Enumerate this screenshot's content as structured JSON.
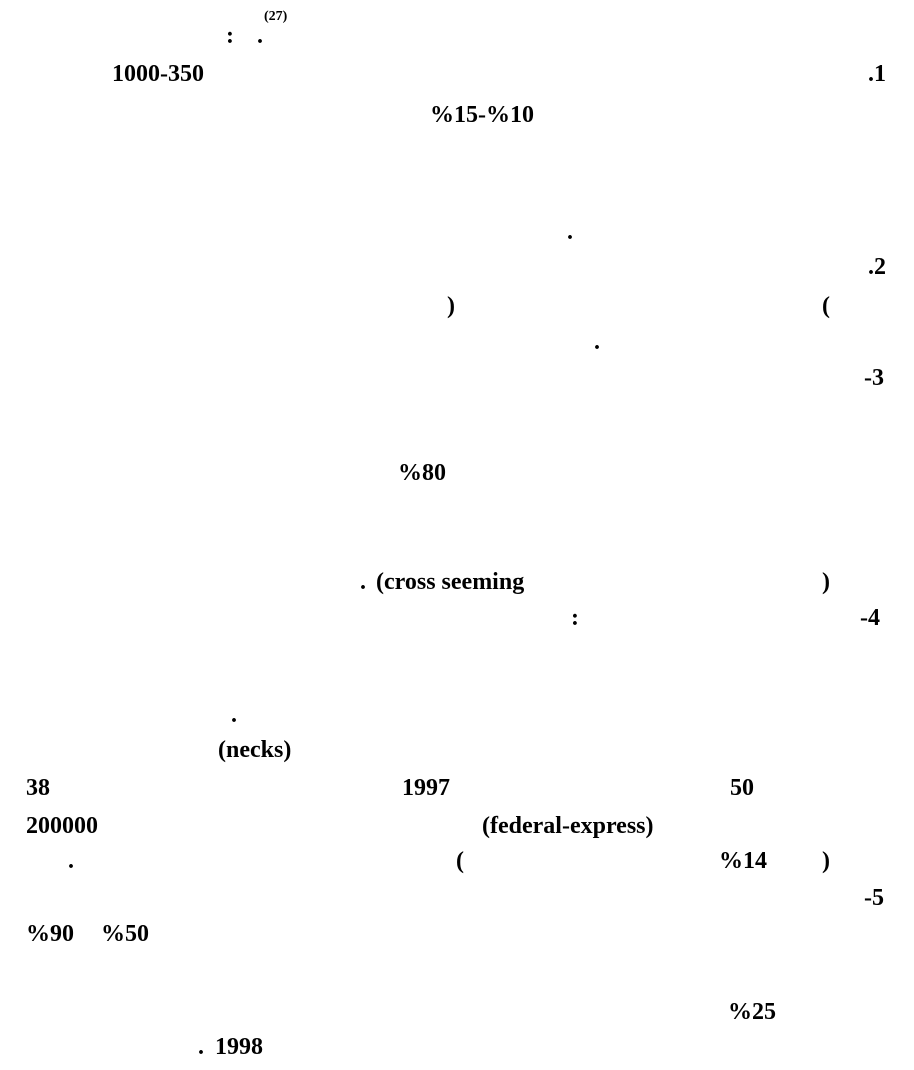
{
  "page": {
    "line1": {
      "colon": ":",
      "dot": ".",
      "ref": "(27)"
    },
    "line2": {
      "range": "1000-350",
      "num": ".1"
    },
    "line3": {
      "pct": "%15-%10"
    },
    "line4": {
      "dot": "."
    },
    "line5": {
      "num": ".2"
    },
    "line6": {
      "close_paren": ")",
      "open_paren": "("
    },
    "line7": {
      "dot": "."
    },
    "line8": {
      "num": "-3"
    },
    "line9": {
      "pct": "%80"
    },
    "line10": {
      "close_paren": ")",
      "term": "(cross seeming",
      "dot": "."
    },
    "line11": {
      "num": "-4",
      "colon": ":"
    },
    "line12": {
      "dot": "."
    },
    "line13": {
      "term": "(necks)"
    },
    "line14": {
      "n50": "50",
      "year": "1997",
      "n38": "38"
    },
    "line15": {
      "term": "(federal-express)",
      "amount": "200000"
    },
    "line16": {
      "close_paren": ")",
      "pct": "%14",
      "open_paren": "(",
      "dot": "."
    },
    "line17": {
      "num": "-5"
    },
    "line18": {
      "pct50": "%50",
      "pct90": "%90"
    },
    "line19": {
      "pct": "%25"
    },
    "line20": {
      "year": "1998",
      "dot": "."
    }
  }
}
